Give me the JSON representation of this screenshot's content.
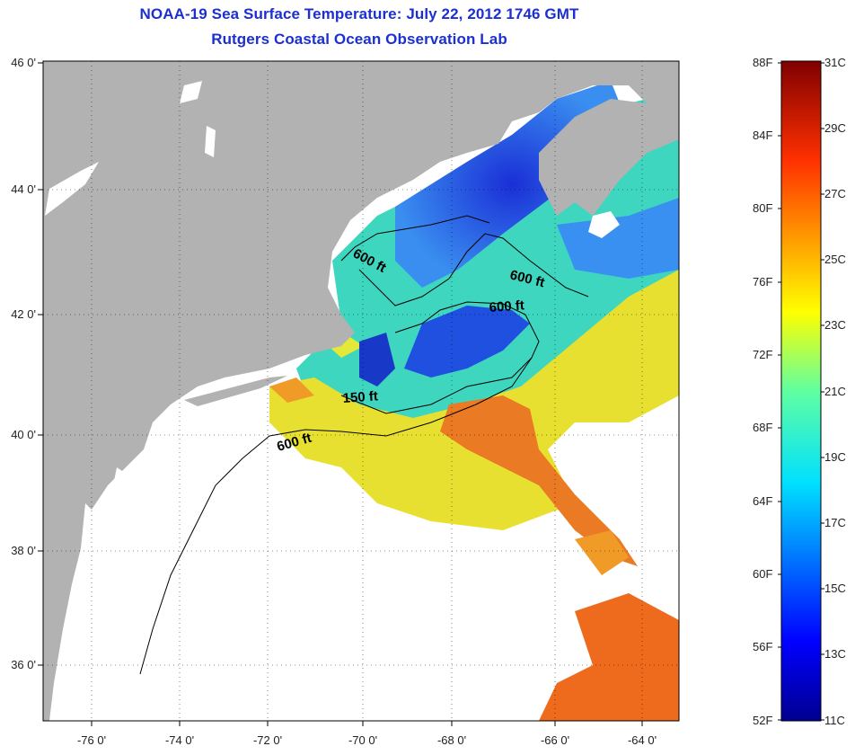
{
  "title": "NOAA-19 Sea Surface Temperature:  July 22, 2012 1746 GMT",
  "subtitle": "Rutgers Coastal Ocean Observation Lab",
  "map": {
    "lat_labels": [
      "46 0'",
      "44 0'",
      "42 0'",
      "40 0'",
      "38 0'",
      "36 0'"
    ],
    "lon_labels": [
      "-76 0'",
      "-74 0'",
      "-72 0'",
      "-70 0'",
      "-68 0'",
      "-66 0'",
      "-64 0'"
    ],
    "contour_labels": [
      "600 ft",
      "600 ft",
      "600 ft",
      "150 ft",
      "600 ft"
    ],
    "colors": {
      "land": "#b2b2b2",
      "no_data": "#ffffff",
      "cold": "#1a2fd6",
      "mid": "#3fd6e6",
      "warm": "#f0e020",
      "hot": "#ea6a1c"
    }
  },
  "colorbar": {
    "fahrenheit_labels": [
      "88F",
      "84F",
      "80F",
      "76F",
      "72F",
      "68F",
      "64F",
      "60F",
      "56F",
      "52F"
    ],
    "celsius_labels": [
      "31C",
      "29C",
      "27C",
      "25C",
      "23C",
      "21C",
      "19C",
      "17C",
      "15C",
      "13C",
      "11C"
    ]
  }
}
